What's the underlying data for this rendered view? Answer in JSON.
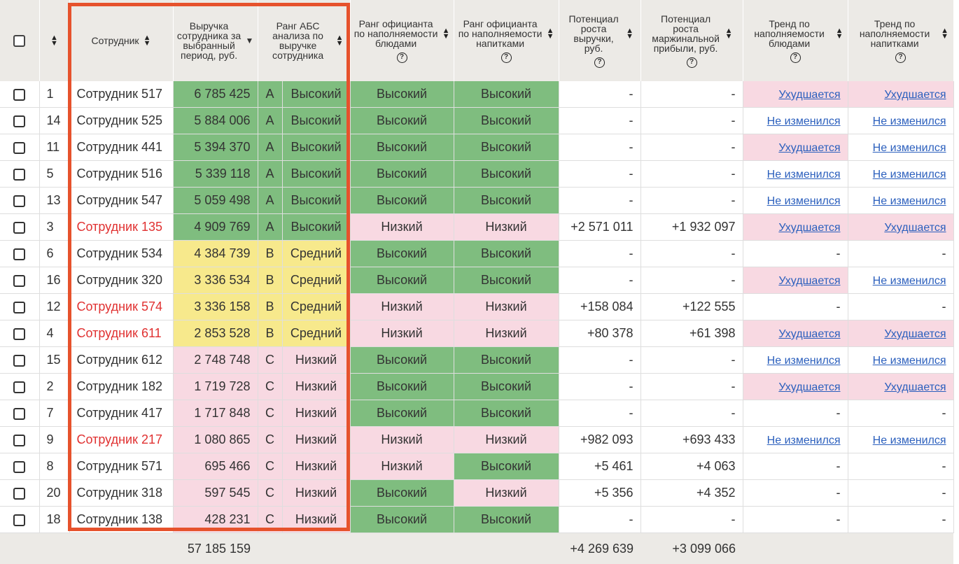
{
  "headers": {
    "employee": "Сотрудник",
    "revenue": "Выручка сотрудника за выбранный период, руб.",
    "abc_rank": "Ранг АБС анализа по выручке сотрудника",
    "rank_dishes": "Ранг официанта по наполняемости блюдами",
    "rank_drinks": "Ранг официанта по наполняемости напитками",
    "potential_revenue": "Потенциал роста выручки, руб.",
    "potential_margin": "Потенциал роста маржинальной прибыли, руб.",
    "trend_dishes": "Тренд по наполняемости блюдами",
    "trend_drinks": "Тренд по наполняемости напитками",
    "help_icon": "?"
  },
  "rows": [
    {
      "num": "1",
      "name": "Сотрудник 517",
      "red": false,
      "revenue": "6 785 425",
      "abc": "A",
      "abc_level": "Высокий",
      "abc_color": "green",
      "dishes": "Высокий",
      "dishes_color": "green",
      "drinks": "Высокий",
      "drinks_color": "green",
      "pot_rev": "-",
      "pot_margin": "-",
      "trend_d": "Ухудшается",
      "trend_d_color": "pink",
      "trend_n": "Ухудшается",
      "trend_n_color": "pink"
    },
    {
      "num": "14",
      "name": "Сотрудник 525",
      "red": false,
      "revenue": "5 884 006",
      "abc": "A",
      "abc_level": "Высокий",
      "abc_color": "green",
      "dishes": "Высокий",
      "dishes_color": "green",
      "drinks": "Высокий",
      "drinks_color": "green",
      "pot_rev": "-",
      "pot_margin": "-",
      "trend_d": "Не изменился",
      "trend_d_color": "",
      "trend_n": "Не изменился",
      "trend_n_color": ""
    },
    {
      "num": "11",
      "name": "Сотрудник 441",
      "red": false,
      "revenue": "5 394 370",
      "abc": "A",
      "abc_level": "Высокий",
      "abc_color": "green",
      "dishes": "Высокий",
      "dishes_color": "green",
      "drinks": "Высокий",
      "drinks_color": "green",
      "pot_rev": "-",
      "pot_margin": "-",
      "trend_d": "Ухудшается",
      "trend_d_color": "pink",
      "trend_n": "Не изменился",
      "trend_n_color": ""
    },
    {
      "num": "5",
      "name": "Сотрудник 516",
      "red": false,
      "revenue": "5 339 118",
      "abc": "A",
      "abc_level": "Высокий",
      "abc_color": "green",
      "dishes": "Высокий",
      "dishes_color": "green",
      "drinks": "Высокий",
      "drinks_color": "green",
      "pot_rev": "-",
      "pot_margin": "-",
      "trend_d": "Не изменился",
      "trend_d_color": "",
      "trend_n": "Не изменился",
      "trend_n_color": ""
    },
    {
      "num": "13",
      "name": "Сотрудник 547",
      "red": false,
      "revenue": "5 059 498",
      "abc": "A",
      "abc_level": "Высокий",
      "abc_color": "green",
      "dishes": "Высокий",
      "dishes_color": "green",
      "drinks": "Высокий",
      "drinks_color": "green",
      "pot_rev": "-",
      "pot_margin": "-",
      "trend_d": "Не изменился",
      "trend_d_color": "",
      "trend_n": "Не изменился",
      "trend_n_color": ""
    },
    {
      "num": "3",
      "name": "Сотрудник 135",
      "red": true,
      "revenue": "4 909 769",
      "abc": "A",
      "abc_level": "Высокий",
      "abc_color": "green",
      "dishes": "Низкий",
      "dishes_color": "pink",
      "drinks": "Низкий",
      "drinks_color": "pink",
      "pot_rev": "+2 571 011",
      "pot_margin": "+1 932 097",
      "trend_d": "Ухудшается",
      "trend_d_color": "pink",
      "trend_n": "Ухудшается",
      "trend_n_color": "pink"
    },
    {
      "num": "6",
      "name": "Сотрудник 534",
      "red": false,
      "revenue": "4 384 739",
      "abc": "B",
      "abc_level": "Средний",
      "abc_color": "yellow",
      "dishes": "Высокий",
      "dishes_color": "green",
      "drinks": "Высокий",
      "drinks_color": "green",
      "pot_rev": "-",
      "pot_margin": "-",
      "trend_d": "-",
      "trend_d_color": "",
      "trend_n": "-",
      "trend_n_color": ""
    },
    {
      "num": "16",
      "name": "Сотрудник 320",
      "red": false,
      "revenue": "3 336 534",
      "abc": "B",
      "abc_level": "Средний",
      "abc_color": "yellow",
      "dishes": "Высокий",
      "dishes_color": "green",
      "drinks": "Высокий",
      "drinks_color": "green",
      "pot_rev": "-",
      "pot_margin": "-",
      "trend_d": "Ухудшается",
      "trend_d_color": "pink",
      "trend_n": "Не изменился",
      "trend_n_color": ""
    },
    {
      "num": "12",
      "name": "Сотрудник 574",
      "red": true,
      "revenue": "3 336 158",
      "abc": "B",
      "abc_level": "Средний",
      "abc_color": "yellow",
      "dishes": "Низкий",
      "dishes_color": "pink",
      "drinks": "Низкий",
      "drinks_color": "pink",
      "pot_rev": "+158 084",
      "pot_margin": "+122 555",
      "trend_d": "-",
      "trend_d_color": "",
      "trend_n": "-",
      "trend_n_color": ""
    },
    {
      "num": "4",
      "name": "Сотрудник 611",
      "red": true,
      "revenue": "2 853 528",
      "abc": "B",
      "abc_level": "Средний",
      "abc_color": "yellow",
      "dishes": "Низкий",
      "dishes_color": "pink",
      "drinks": "Низкий",
      "drinks_color": "pink",
      "pot_rev": "+80 378",
      "pot_margin": "+61 398",
      "trend_d": "Ухудшается",
      "trend_d_color": "pink",
      "trend_n": "Ухудшается",
      "trend_n_color": "pink"
    },
    {
      "num": "15",
      "name": "Сотрудник 612",
      "red": false,
      "revenue": "2 748 748",
      "abc": "C",
      "abc_level": "Низкий",
      "abc_color": "pink",
      "dishes": "Высокий",
      "dishes_color": "green",
      "drinks": "Высокий",
      "drinks_color": "green",
      "pot_rev": "-",
      "pot_margin": "-",
      "trend_d": "Не изменился",
      "trend_d_color": "",
      "trend_n": "Не изменился",
      "trend_n_color": ""
    },
    {
      "num": "2",
      "name": "Сотрудник 182",
      "red": false,
      "revenue": "1 719 728",
      "abc": "C",
      "abc_level": "Низкий",
      "abc_color": "pink",
      "dishes": "Высокий",
      "dishes_color": "green",
      "drinks": "Высокий",
      "drinks_color": "green",
      "pot_rev": "-",
      "pot_margin": "-",
      "trend_d": "Ухудшается",
      "trend_d_color": "pink",
      "trend_n": "Ухудшается",
      "trend_n_color": "pink"
    },
    {
      "num": "7",
      "name": "Сотрудник 417",
      "red": false,
      "revenue": "1 717 848",
      "abc": "C",
      "abc_level": "Низкий",
      "abc_color": "pink",
      "dishes": "Высокий",
      "dishes_color": "green",
      "drinks": "Высокий",
      "drinks_color": "green",
      "pot_rev": "-",
      "pot_margin": "-",
      "trend_d": "-",
      "trend_d_color": "",
      "trend_n": "-",
      "trend_n_color": ""
    },
    {
      "num": "9",
      "name": "Сотрудник 217",
      "red": true,
      "revenue": "1 080 865",
      "abc": "C",
      "abc_level": "Низкий",
      "abc_color": "pink",
      "dishes": "Низкий",
      "dishes_color": "pink",
      "drinks": "Низкий",
      "drinks_color": "pink",
      "pot_rev": "+982 093",
      "pot_margin": "+693 433",
      "trend_d": "Не изменился",
      "trend_d_color": "",
      "trend_n": "Не изменился",
      "trend_n_color": ""
    },
    {
      "num": "8",
      "name": "Сотрудник 571",
      "red": false,
      "revenue": "695 466",
      "abc": "C",
      "abc_level": "Низкий",
      "abc_color": "pink",
      "dishes": "Низкий",
      "dishes_color": "pink",
      "drinks": "Высокий",
      "drinks_color": "green",
      "pot_rev": "+5 461",
      "pot_margin": "+4 063",
      "trend_d": "-",
      "trend_d_color": "",
      "trend_n": "-",
      "trend_n_color": ""
    },
    {
      "num": "20",
      "name": "Сотрудник 318",
      "red": false,
      "revenue": "597 545",
      "abc": "C",
      "abc_level": "Низкий",
      "abc_color": "pink",
      "dishes": "Высокий",
      "dishes_color": "green",
      "drinks": "Низкий",
      "drinks_color": "pink",
      "pot_rev": "+5 356",
      "pot_margin": "+4 352",
      "trend_d": "-",
      "trend_d_color": "",
      "trend_n": "-",
      "trend_n_color": ""
    },
    {
      "num": "18",
      "name": "Сотрудник 138",
      "red": false,
      "revenue": "428 231",
      "abc": "C",
      "abc_level": "Низкий",
      "abc_color": "pink",
      "dishes": "Высокий",
      "dishes_color": "green",
      "drinks": "Высокий",
      "drinks_color": "green",
      "pot_rev": "-",
      "pot_margin": "-",
      "trend_d": "-",
      "trend_d_color": "",
      "trend_n": "-",
      "trend_n_color": ""
    }
  ],
  "totals": {
    "revenue": "57 185 159",
    "pot_rev": "+4 269 639",
    "pot_margin": "+3 099 066"
  },
  "colors": {
    "green": "#7fbd7f",
    "yellow": "#f7e98c",
    "pink": "#f8d9e2",
    "highlight": "#e6522c",
    "red_text": "#e03131",
    "link": "#2b5fbd"
  }
}
